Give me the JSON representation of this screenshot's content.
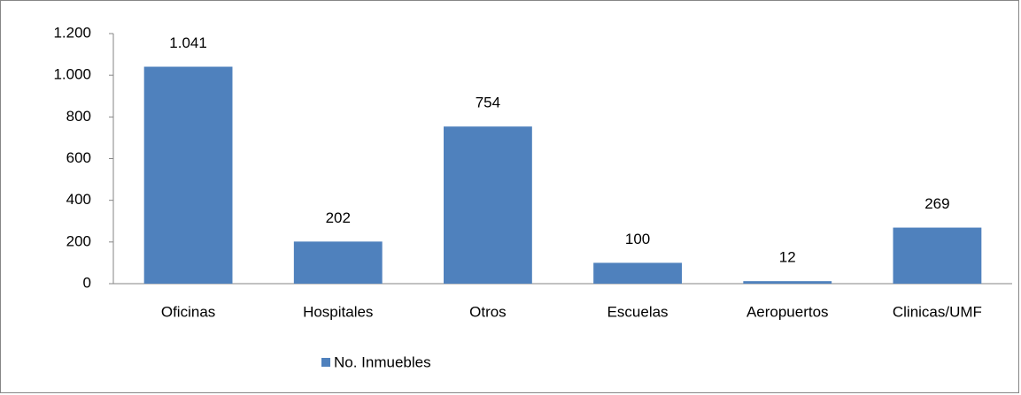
{
  "chart_data": {
    "type": "bar",
    "categories": [
      "Oficinas",
      "Hospitales",
      "Otros",
      "Escuelas",
      "Aeropuertos",
      "Clinicas/UMF"
    ],
    "series": [
      {
        "name": "No. Inmuebles",
        "color": "#4f81bd",
        "values": [
          1041,
          202,
          754,
          100,
          12,
          269
        ],
        "value_labels": [
          "1.041",
          "202",
          "754",
          "100",
          "12",
          "269"
        ]
      }
    ],
    "ylim": [
      0,
      1200
    ],
    "yticks": [
      0,
      200,
      400,
      600,
      800,
      {
        "value": 1000,
        "label": "1.000"
      },
      {
        "value": 1200,
        "label": "1.200"
      }
    ],
    "legend": "bottom",
    "grid": false
  }
}
